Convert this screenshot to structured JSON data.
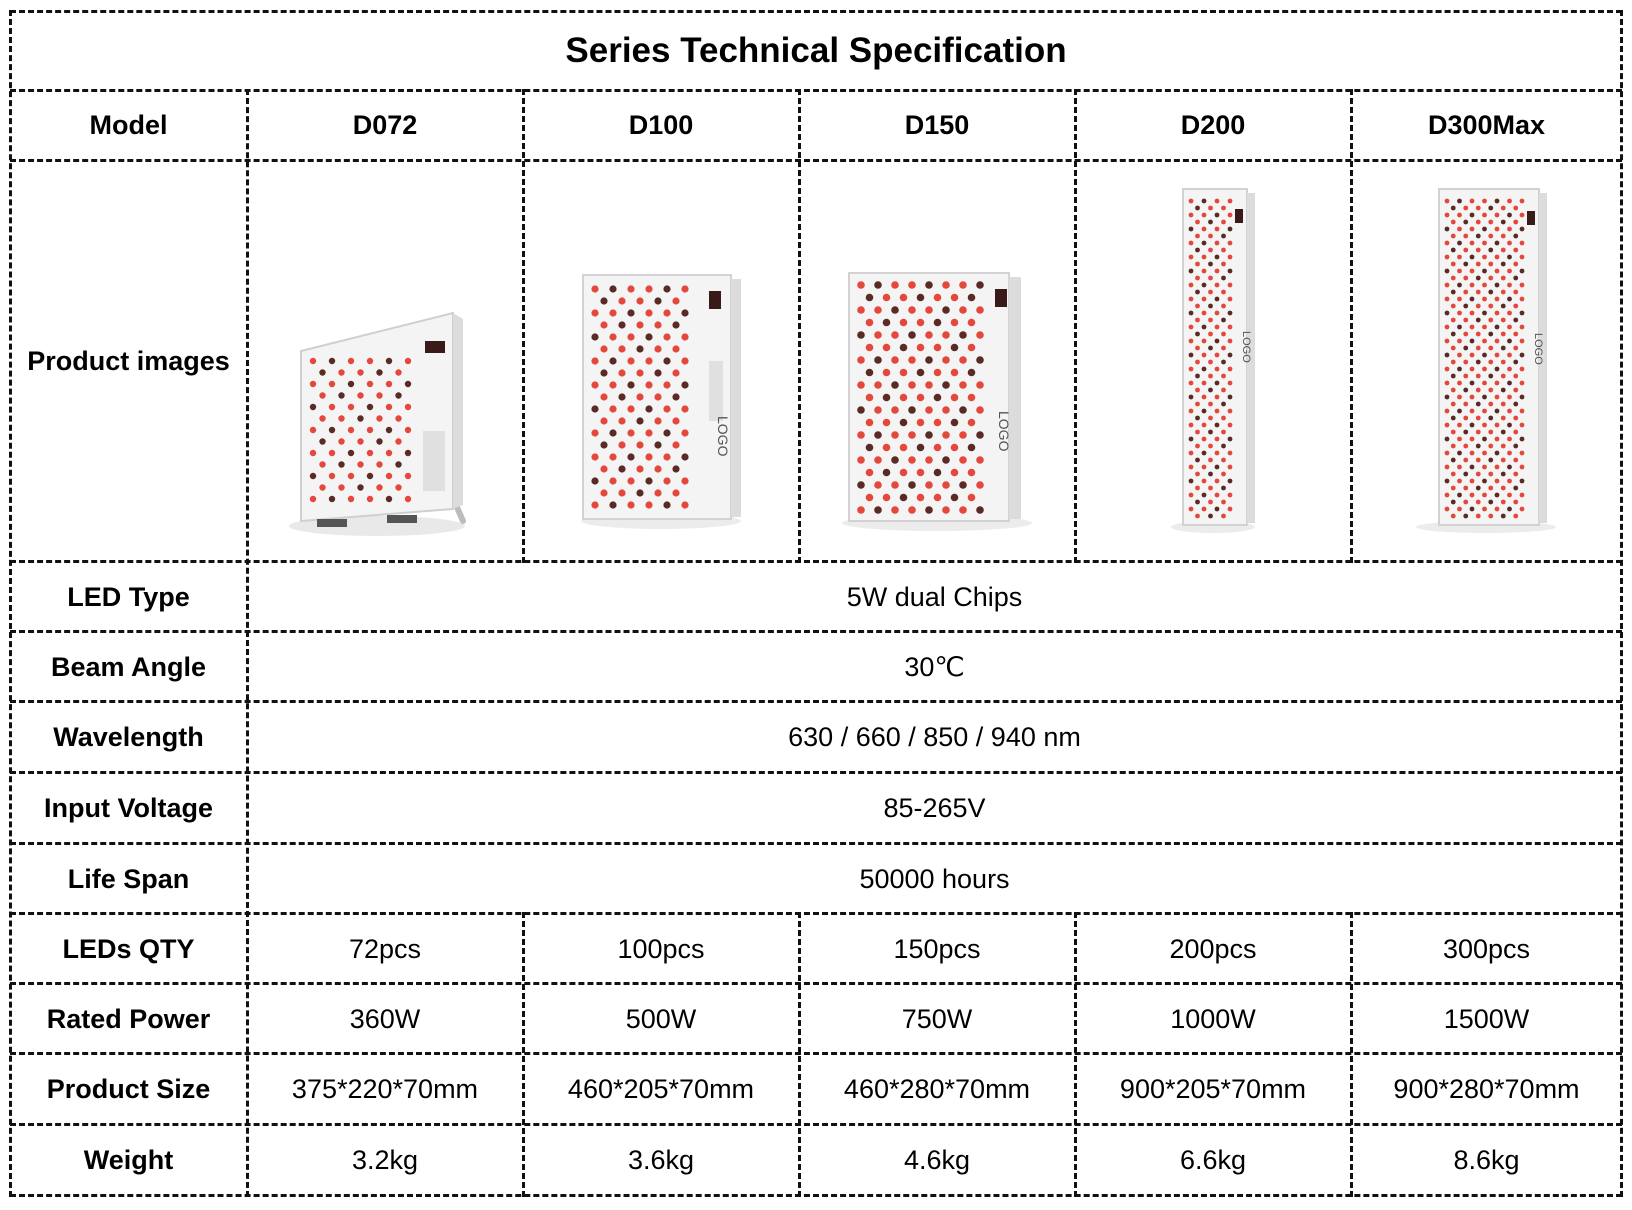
{
  "title": "Series Technical Specification",
  "colors": {
    "led_red": "#e4483c",
    "led_dark": "#5a2a24",
    "panel": "#f4f4f4",
    "grid": "#111111"
  },
  "header": {
    "label": "Model",
    "models": [
      "D072",
      "D100",
      "D150",
      "D200",
      "D300Max"
    ]
  },
  "product_images": {
    "label": "Product images",
    "logo_text": "LOGO",
    "items": [
      {
        "model": "D072",
        "icon": "led-panel-with-stand"
      },
      {
        "model": "D100",
        "icon": "led-panel"
      },
      {
        "model": "D150",
        "icon": "led-panel"
      },
      {
        "model": "D200",
        "icon": "led-panel-tall"
      },
      {
        "model": "D300Max",
        "icon": "led-panel-tall"
      }
    ]
  },
  "shared_rows": [
    {
      "label": "LED Type",
      "value": "5W dual Chips"
    },
    {
      "label": "Beam Angle",
      "value": "30℃"
    },
    {
      "label": "Wavelength",
      "value": "630 / 660 / 850 / 940 nm"
    },
    {
      "label": "Input Voltage",
      "value": "85-265V"
    },
    {
      "label": "Life Span",
      "value": "50000 hours"
    }
  ],
  "per_model_rows": [
    {
      "label": "LEDs QTY",
      "values": [
        "72pcs",
        "100pcs",
        "150pcs",
        "200pcs",
        "300pcs"
      ]
    },
    {
      "label": "Rated Power",
      "values": [
        "360W",
        "500W",
        "750W",
        "1000W",
        "1500W"
      ]
    },
    {
      "label": "Product Size",
      "values": [
        "375*220*70mm",
        "460*205*70mm",
        "460*280*70mm",
        "900*205*70mm",
        "900*280*70mm"
      ]
    },
    {
      "label": "Weight",
      "values": [
        "3.2kg",
        "3.6kg",
        "4.6kg",
        "6.6kg",
        "8.6kg"
      ]
    }
  ]
}
